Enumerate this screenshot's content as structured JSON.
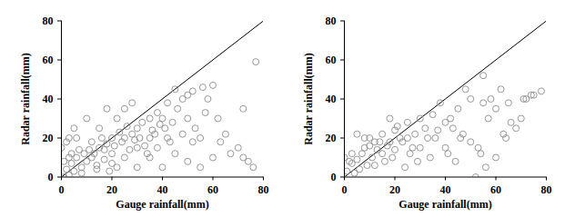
{
  "chart_data": [
    {
      "type": "scatter",
      "x_label": "Gauge rainfall(mm)",
      "y_label": "Radar rainfall(mm)",
      "xlim": [
        0,
        80
      ],
      "ylim": [
        0,
        80
      ],
      "xticks": [
        0,
        20,
        40,
        60,
        80
      ],
      "yticks": [
        0,
        20,
        40,
        60,
        80
      ],
      "color": "#8c8c8c",
      "marker": "circle",
      "x": [
        77,
        72,
        60,
        56,
        52,
        50,
        48,
        45,
        58,
        70,
        72,
        76,
        63,
        55,
        50,
        42,
        40,
        38,
        35,
        44,
        30,
        28,
        25,
        22,
        18,
        10,
        5,
        3,
        2,
        0,
        15,
        20,
        25,
        30,
        35,
        40,
        45,
        50,
        55,
        60,
        65,
        35,
        38,
        42,
        48,
        52,
        30,
        25,
        20,
        15,
        12,
        10,
        8,
        5,
        3,
        1,
        6,
        9,
        14,
        17,
        19,
        22,
        24,
        28,
        32,
        34,
        12,
        7,
        4,
        2,
        16,
        21,
        27,
        31,
        36,
        41,
        46,
        53,
        57,
        62,
        67,
        74,
        11,
        13,
        18,
        23,
        26,
        29,
        33,
        37,
        39,
        43,
        8,
        6,
        4,
        14,
        17,
        20,
        1,
        3
      ],
      "y": [
        59,
        35,
        47,
        46,
        44,
        42,
        40,
        45,
        40,
        15,
        10,
        5,
        18,
        20,
        30,
        38,
        30,
        33,
        30,
        28,
        25,
        38,
        35,
        30,
        35,
        30,
        25,
        20,
        18,
        15,
        25,
        20,
        20,
        15,
        10,
        5,
        12,
        8,
        5,
        10,
        22,
        20,
        15,
        20,
        22,
        18,
        5,
        10,
        12,
        15,
        10,
        8,
        5,
        3,
        1,
        0,
        10,
        12,
        6,
        9,
        3,
        5,
        18,
        22,
        28,
        12,
        18,
        14,
        7,
        4,
        20,
        16,
        14,
        20,
        24,
        25,
        35,
        25,
        33,
        30,
        12,
        8,
        14,
        12,
        17,
        23,
        26,
        19,
        16,
        22,
        27,
        18,
        2,
        20,
        12,
        4,
        14,
        7,
        8,
        10
      ],
      "lines": [
        {
          "x": [
            0,
            80
          ],
          "y": [
            0,
            80
          ],
          "color": "#000000"
        }
      ]
    },
    {
      "type": "scatter",
      "x_label": "Gauge rainfall(mm)",
      "y_label": "Radar rainfall(mm)",
      "xlim": [
        0,
        80
      ],
      "ylim": [
        0,
        80
      ],
      "xticks": [
        0,
        20,
        40,
        60,
        80
      ],
      "yticks": [
        0,
        20,
        40,
        60,
        80
      ],
      "color": "#8c8c8c",
      "marker": "circle",
      "x": [
        62,
        55,
        75,
        78,
        72,
        65,
        60,
        58,
        55,
        50,
        48,
        45,
        42,
        40,
        38,
        35,
        32,
        30,
        28,
        25,
        22,
        20,
        18,
        15,
        12,
        10,
        8,
        5,
        3,
        2,
        1,
        0,
        52,
        56,
        60,
        64,
        68,
        70,
        54,
        50,
        46,
        44,
        40,
        36,
        34,
        30,
        26,
        24,
        20,
        16,
        14,
        11,
        9,
        6,
        4,
        7,
        13,
        17,
        19,
        23,
        27,
        29,
        33,
        37,
        41,
        43,
        47,
        53,
        57,
        63,
        66,
        71,
        74,
        21,
        25,
        18,
        15,
        12,
        10,
        8,
        3,
        5
      ],
      "y": [
        45,
        52,
        42,
        44,
        40,
        38,
        35,
        40,
        38,
        40,
        45,
        35,
        30,
        28,
        38,
        32,
        25,
        30,
        22,
        28,
        20,
        24,
        30,
        22,
        18,
        20,
        15,
        22,
        12,
        8,
        3,
        10,
        0,
        5,
        10,
        20,
        25,
        30,
        12,
        18,
        20,
        8,
        15,
        20,
        10,
        15,
        12,
        5,
        14,
        8,
        18,
        10,
        6,
        4,
        2,
        12,
        14,
        16,
        10,
        18,
        15,
        8,
        20,
        24,
        12,
        25,
        22,
        15,
        30,
        22,
        28,
        40,
        42,
        26,
        20,
        18,
        12,
        6,
        16,
        20,
        7,
        9
      ],
      "lines": [
        {
          "x": [
            0,
            80
          ],
          "y": [
            0,
            80
          ],
          "color": "#000000"
        }
      ]
    }
  ]
}
